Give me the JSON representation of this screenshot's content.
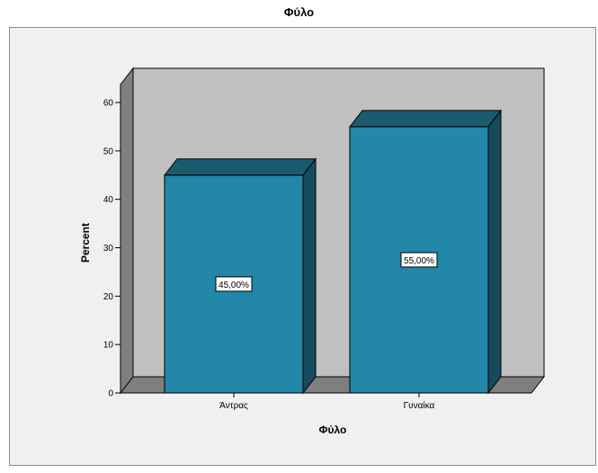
{
  "chart_data": {
    "type": "bar",
    "title": "Φύλο",
    "xlabel": "Φύλο",
    "ylabel": "Percent",
    "categories": [
      "Άντρας",
      "Γυναίκα"
    ],
    "values": [
      45,
      55
    ],
    "data_labels": [
      "45,00%",
      "55,00%"
    ],
    "ylim": [
      0,
      60
    ],
    "yticks": [
      0,
      10,
      20,
      30,
      40,
      50,
      60
    ],
    "grid": false,
    "style": "3d",
    "colors": {
      "bar_front": "#2287a8",
      "bar_top": "#1a5b70",
      "bar_side": "#164a5c",
      "wall_back": "#c0c0c0",
      "wall_side": "#7f7f7f",
      "floor": "#7f7f7f",
      "frame_bg": "#f0f0f0"
    }
  }
}
